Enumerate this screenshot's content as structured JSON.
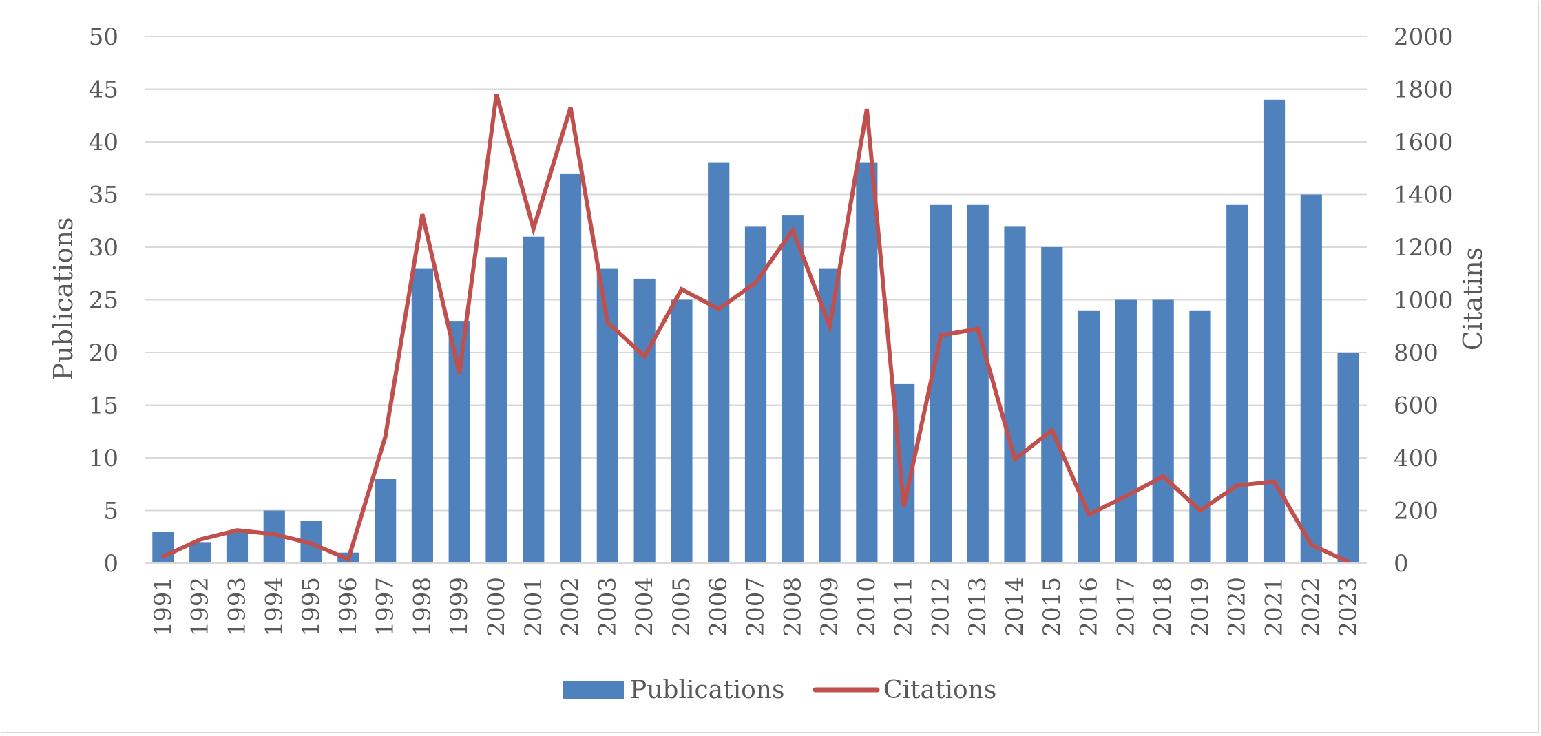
{
  "chart_data": {
    "type": "bar",
    "title": "",
    "categories": [
      "1991",
      "1992",
      "1993",
      "1994",
      "1995",
      "1996",
      "1997",
      "1998",
      "1999",
      "2000",
      "2001",
      "2002",
      "2003",
      "2004",
      "2005",
      "2006",
      "2007",
      "2008",
      "2009",
      "2010",
      "2011",
      "2012",
      "2013",
      "2014",
      "2015",
      "2016",
      "2017",
      "2018",
      "2019",
      "2020",
      "2021",
      "2022",
      "2023"
    ],
    "series": [
      {
        "name": "Publications",
        "type": "bar",
        "axis": "left",
        "color": "#4F81BD",
        "values": [
          3,
          2,
          3,
          5,
          4,
          1,
          8,
          28,
          23,
          29,
          31,
          37,
          28,
          27,
          25,
          38,
          32,
          33,
          28,
          38,
          17,
          34,
          34,
          32,
          30,
          24,
          25,
          25,
          24,
          34,
          44,
          35,
          20
        ]
      },
      {
        "name": "Citations",
        "type": "line",
        "axis": "right",
        "color": "#C0504D",
        "values": [
          25,
          90,
          125,
          110,
          75,
          15,
          480,
          1325,
          720,
          1780,
          1270,
          1730,
          915,
          785,
          1040,
          965,
          1065,
          1265,
          900,
          1725,
          215,
          865,
          890,
          395,
          505,
          185,
          255,
          330,
          200,
          295,
          310,
          70,
          5
        ]
      }
    ],
    "ylabel": "Publications",
    "ylabel_right": "Citatins",
    "ylim": [
      0,
      50
    ],
    "yticks": [
      "0",
      "5",
      "10",
      "15",
      "20",
      "25",
      "30",
      "35",
      "40",
      "45",
      "50"
    ],
    "ylim_right": [
      0,
      2000
    ],
    "yticks_right": [
      "0",
      "200",
      "400",
      "600",
      "800",
      "1000",
      "1200",
      "1400",
      "1600",
      "1800",
      "2000"
    ],
    "grid": true,
    "legend_placement": "bottom-center",
    "legend": [
      {
        "label": "Publications",
        "kind": "bar",
        "color": "#4F81BD"
      },
      {
        "label": "Citations",
        "kind": "line",
        "color": "#C0504D"
      }
    ]
  }
}
